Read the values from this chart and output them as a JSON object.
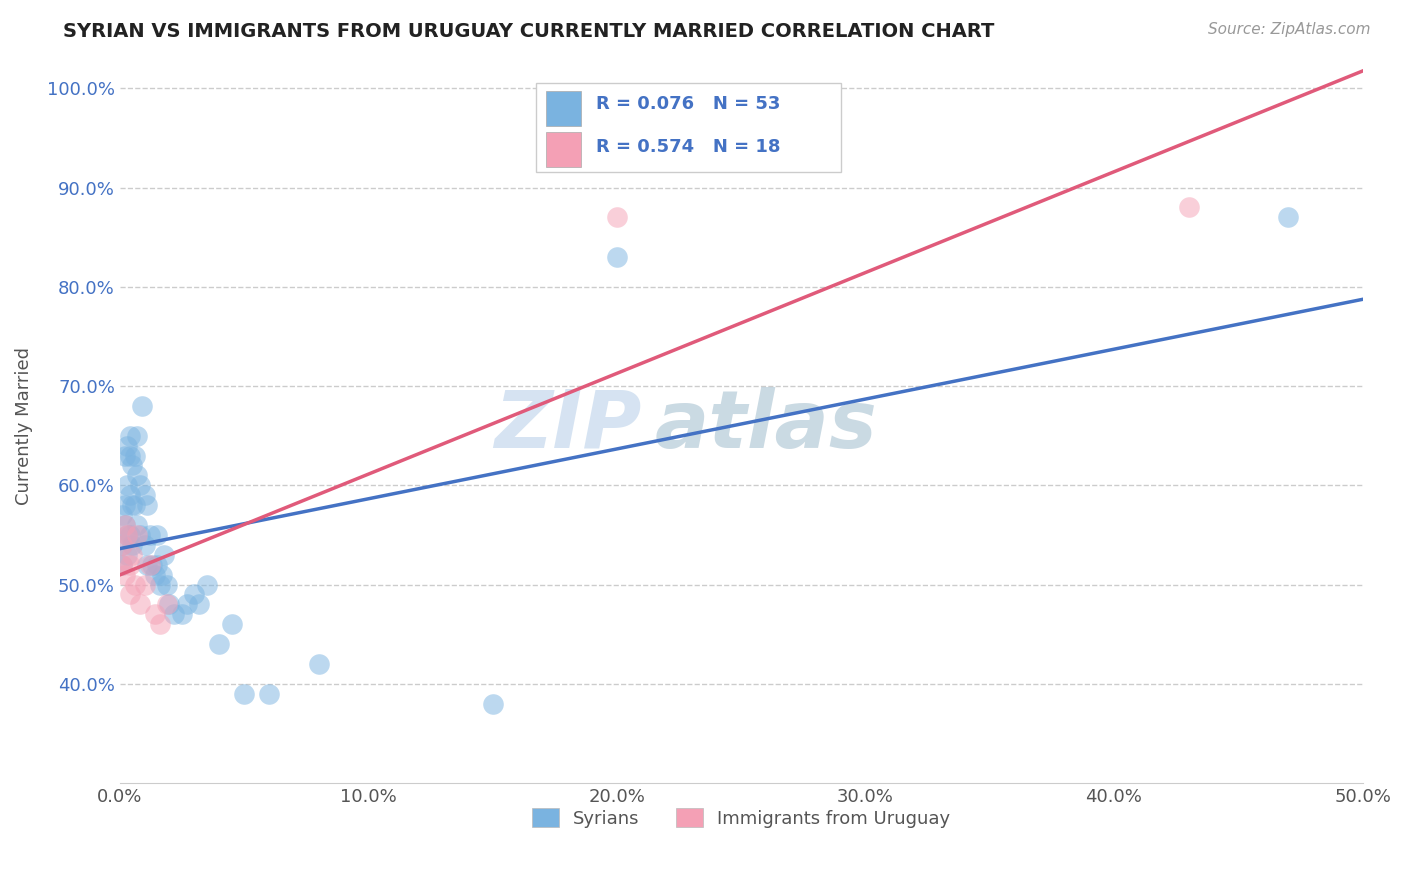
{
  "title": "SYRIAN VS IMMIGRANTS FROM URUGUAY CURRENTLY MARRIED CORRELATION CHART",
  "source": "Source: ZipAtlas.com",
  "ylabel_label": "Currently Married",
  "watermark_zip": "ZIP",
  "watermark_atlas": "atlas",
  "xmin": 0.0,
  "xmax": 0.5,
  "ymin": 0.3,
  "ymax": 1.02,
  "yticks": [
    0.4,
    0.5,
    0.6,
    0.7,
    0.8,
    0.9,
    1.0
  ],
  "ytick_labels": [
    "40.0%",
    "50.0%",
    "60.0%",
    "70.0%",
    "80.0%",
    "90.0%",
    "100.0%"
  ],
  "xticks": [
    0.0,
    0.1,
    0.2,
    0.3,
    0.4,
    0.5
  ],
  "xtick_labels": [
    "0.0%",
    "10.0%",
    "20.0%",
    "30.0%",
    "40.0%",
    "50.0%"
  ],
  "syrian_color": "#7ab3e0",
  "uruguay_color": "#f4a0b5",
  "line_blue": "#4472c4",
  "line_pink": "#e05a7a",
  "syrian_R": 0.076,
  "syrian_N": 53,
  "uruguay_R": 0.574,
  "uruguay_N": 18,
  "legend_labels": [
    "Syrians",
    "Immigrants from Uruguay"
  ],
  "syrian_x": [
    0.001,
    0.001,
    0.001,
    0.002,
    0.002,
    0.002,
    0.003,
    0.003,
    0.003,
    0.003,
    0.004,
    0.004,
    0.004,
    0.004,
    0.005,
    0.005,
    0.005,
    0.006,
    0.006,
    0.007,
    0.007,
    0.007,
    0.008,
    0.008,
    0.009,
    0.01,
    0.01,
    0.011,
    0.011,
    0.012,
    0.013,
    0.014,
    0.015,
    0.015,
    0.016,
    0.017,
    0.018,
    0.019,
    0.02,
    0.022,
    0.025,
    0.027,
    0.03,
    0.032,
    0.035,
    0.04,
    0.045,
    0.05,
    0.06,
    0.08,
    0.15,
    0.2,
    0.47
  ],
  "syrian_y": [
    0.54,
    0.57,
    0.52,
    0.56,
    0.58,
    0.63,
    0.64,
    0.6,
    0.53,
    0.55,
    0.65,
    0.63,
    0.59,
    0.55,
    0.62,
    0.58,
    0.54,
    0.63,
    0.58,
    0.65,
    0.61,
    0.56,
    0.6,
    0.55,
    0.68,
    0.59,
    0.54,
    0.58,
    0.52,
    0.55,
    0.52,
    0.51,
    0.55,
    0.52,
    0.5,
    0.51,
    0.53,
    0.5,
    0.48,
    0.47,
    0.47,
    0.48,
    0.49,
    0.48,
    0.5,
    0.44,
    0.46,
    0.39,
    0.39,
    0.42,
    0.38,
    0.83,
    0.87
  ],
  "uruguay_x": [
    0.001,
    0.001,
    0.002,
    0.002,
    0.003,
    0.004,
    0.004,
    0.005,
    0.006,
    0.007,
    0.008,
    0.01,
    0.012,
    0.014,
    0.016,
    0.019,
    0.2,
    0.43
  ],
  "uruguay_y": [
    0.54,
    0.52,
    0.51,
    0.56,
    0.55,
    0.49,
    0.52,
    0.53,
    0.5,
    0.55,
    0.48,
    0.5,
    0.52,
    0.47,
    0.46,
    0.48,
    0.87,
    0.88
  ]
}
